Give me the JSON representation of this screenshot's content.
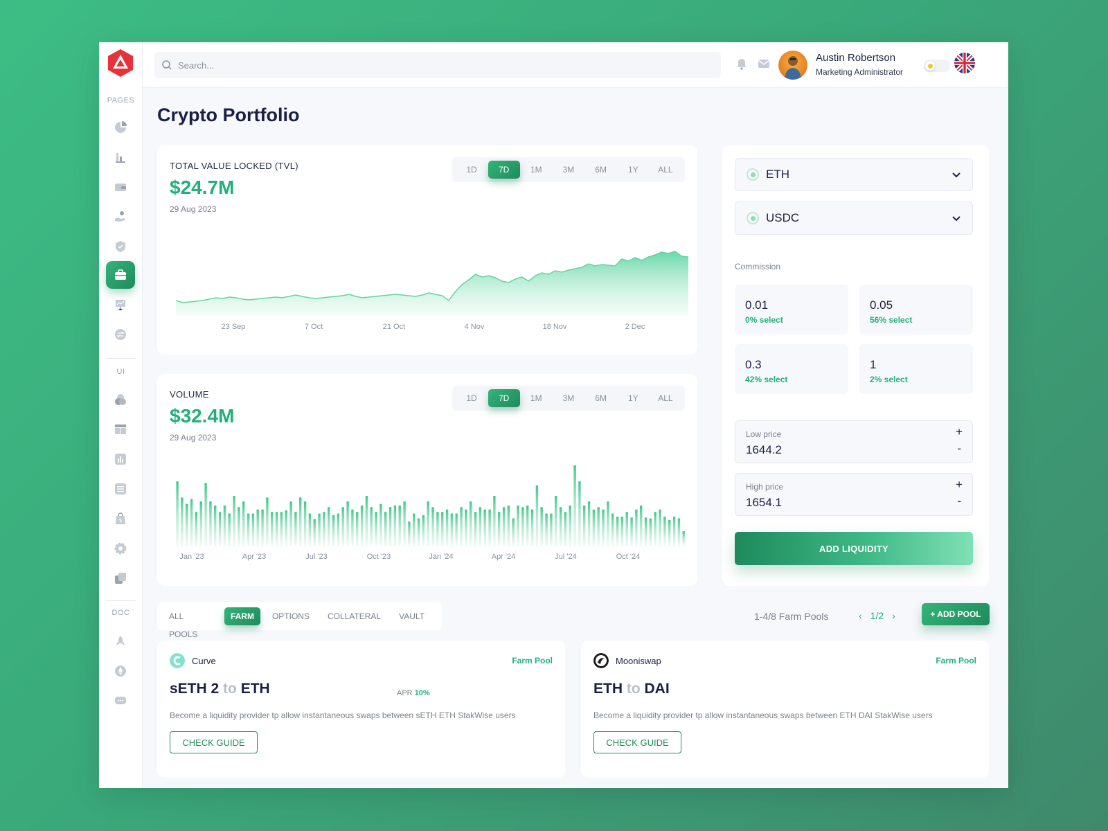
{
  "search": {
    "placeholder": "Search..."
  },
  "user": {
    "name": "Austin Robertson",
    "role": "Marketing Administrator"
  },
  "sidebar": {
    "sections": [
      "PAGES",
      "UI",
      "DOC"
    ],
    "pages_icons": [
      "pie-chart-icon",
      "bar-chart-icon",
      "wallet-icon",
      "hand-coin-icon",
      "shield-check-icon",
      "briefcase-icon",
      "presentation-icon",
      "exchange-icon"
    ],
    "ui_icons": [
      "circles-icon",
      "layout-icon",
      "chart-icon",
      "list-icon",
      "shopping-bag-icon",
      "gear-icon",
      "copy-icon"
    ],
    "doc_icons": [
      "rocket-icon",
      "ethereum-icon",
      "chat-icon"
    ],
    "active": "briefcase-icon"
  },
  "page": {
    "title": "Crypto Portfolio"
  },
  "ranges": [
    "1D",
    "7D",
    "1M",
    "3M",
    "6M",
    "1Y",
    "ALL"
  ],
  "active_range": "7D",
  "tvl": {
    "label": "TOTAL VALUE LOCKED (TVL)",
    "value": "$24.7M",
    "date": "29 Aug 2023",
    "x_labels": [
      "23 Sep",
      "7 Oct",
      "21 Oct",
      "4 Nov",
      "18 Nov",
      "2 Dec"
    ]
  },
  "volume": {
    "label": "VOLUME",
    "value": "$32.4M",
    "date": "29 Aug 2023",
    "x_labels": [
      "Jan '23",
      "Apr '23",
      "Jul '23",
      "Oct '23",
      "Jan '24",
      "Apr '24",
      "Jul '24",
      "Oct '24"
    ]
  },
  "swap": {
    "token_a": "ETH",
    "token_b": "USDC",
    "commission_label": "Commission",
    "commissions": [
      {
        "value": "0.01",
        "select": "0% select"
      },
      {
        "value": "0.05",
        "select": "56% select"
      },
      {
        "value": "0.3",
        "select": "42% select"
      },
      {
        "value": "1",
        "select": "2% select"
      }
    ],
    "low_price": {
      "label": "Low price",
      "value": "1644.2"
    },
    "high_price": {
      "label": "High price",
      "value": "1654.1"
    },
    "plus": "+",
    "minus": "-",
    "add_liquidity": "ADD LIQUIDITY"
  },
  "pool_tabs": [
    "ALL POOLS",
    "FARM",
    "OPTIONS",
    "COLLATERAL",
    "VAULT"
  ],
  "active_tab": "FARM",
  "pool_count": "1-4/8 Farm Pools",
  "pager": {
    "prev": "‹",
    "page": "1/2",
    "next": "›"
  },
  "add_pool": "+ ADD POOL",
  "pools": [
    {
      "name": "Curve",
      "type": "Farm Pool",
      "from": "sETH 2",
      "to_word": "to",
      "to": "ETH",
      "apr_label": "APR",
      "apr": "10%",
      "description": "Become a liquidity provider tp allow instantaneous swaps between sETH ETH StakWise users",
      "guide": "CHECK GUIDE"
    },
    {
      "name": "Mooniswap",
      "type": "Farm Pool",
      "from": "ETH",
      "to_word": "to",
      "to": "DAI",
      "description": "Become a liquidity provider tp allow instantaneous swaps between ETH DAI StakWise users",
      "guide": "CHECK GUIDE"
    }
  ],
  "chart_data": [
    {
      "type": "area",
      "title": "TOTAL VALUE LOCKED (TVL)",
      "x_ticks": [
        "23 Sep",
        "7 Oct",
        "21 Oct",
        "4 Nov",
        "18 Nov",
        "2 Dec"
      ],
      "values": [
        22,
        19,
        20,
        21,
        22,
        24,
        26,
        25,
        27,
        26,
        24,
        23,
        24,
        25,
        26,
        27,
        26,
        28,
        30,
        28,
        26,
        25,
        26,
        27,
        28,
        29,
        31,
        28,
        26,
        27,
        28,
        29,
        30,
        31,
        30,
        29,
        28,
        30,
        33,
        31,
        29,
        22,
        35,
        45,
        52,
        60,
        56,
        58,
        55,
        50,
        48,
        53,
        56,
        50,
        58,
        62,
        60,
        65,
        63,
        66,
        68,
        70,
        75,
        72,
        74,
        73,
        72,
        82,
        79,
        84,
        80,
        85,
        88,
        92,
        90,
        93,
        86,
        85
      ],
      "color": "#21b07a"
    },
    {
      "type": "bar",
      "title": "VOLUME",
      "x_ticks": [
        "Jan '23",
        "Apr '23",
        "Jul '23",
        "Oct '23",
        "Jan '24",
        "Apr '24",
        "Jul '24",
        "Oct '24"
      ],
      "values": [
        80,
        60,
        52,
        58,
        42,
        55,
        78,
        55,
        50,
        42,
        50,
        40,
        62,
        48,
        55,
        40,
        40,
        45,
        45,
        60,
        42,
        42,
        42,
        44,
        55,
        42,
        60,
        55,
        40,
        33,
        40,
        42,
        48,
        38,
        40,
        48,
        55,
        45,
        42,
        50,
        62,
        48,
        42,
        52,
        42,
        48,
        50,
        50,
        55,
        30,
        40,
        34,
        38,
        55,
        48,
        42,
        42,
        45,
        40,
        40,
        48,
        45,
        55,
        42,
        48,
        45,
        45,
        62,
        42,
        48,
        50,
        34,
        50,
        48,
        50,
        45,
        75,
        48,
        40,
        40,
        62,
        48,
        42,
        50,
        100,
        80,
        50,
        55,
        45,
        48,
        45,
        55,
        40,
        36,
        36,
        42,
        35,
        45,
        50,
        35,
        34,
        42,
        45,
        36,
        32,
        36,
        34,
        18
      ],
      "color": "#21b07a"
    }
  ],
  "colors": {
    "accent": "#21b07a",
    "accent_dark": "#1f8a5c",
    "title": "#1b1f45",
    "muted": "#7a808c"
  }
}
